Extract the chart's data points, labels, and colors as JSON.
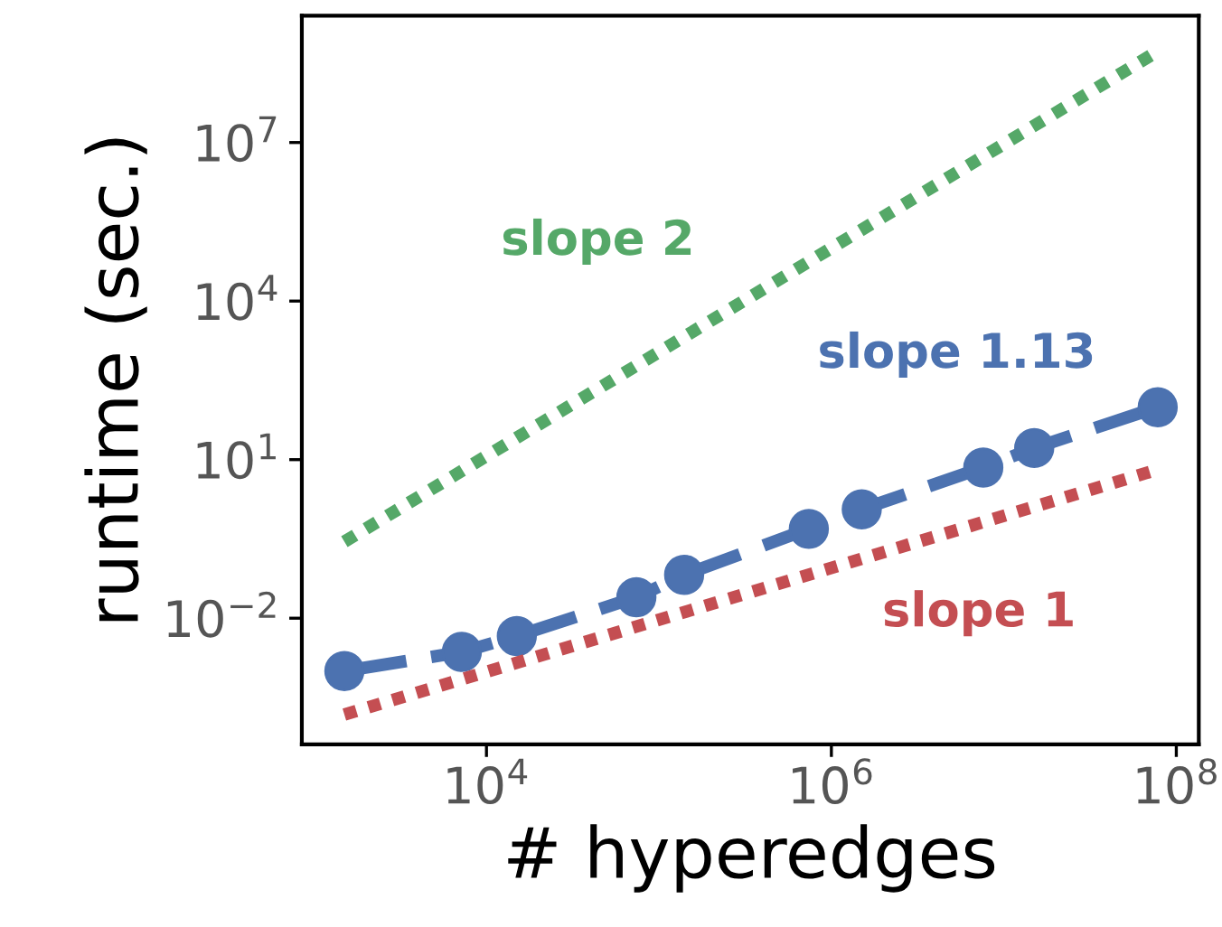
{
  "chart_data": {
    "type": "line",
    "xlabel": "# hyperedges",
    "ylabel": "runtime (sec.)",
    "log": "xy",
    "grid": false,
    "legend": false,
    "xlim": [
      850,
      135000000
    ],
    "ylim": [
      4.1e-05,
      2500000000
    ],
    "xticks": [
      {
        "value": 10000,
        "label": "10$^{4}$"
      },
      {
        "value": 1000000,
        "label": "10$^{6}$"
      },
      {
        "value": 100000000,
        "label": "10$^{8}$"
      }
    ],
    "yticks": [
      {
        "value": 0.01,
        "label": "10$^{−2}$"
      },
      {
        "value": 10,
        "label": "10$^{1}$"
      },
      {
        "value": 10000,
        "label": "10$^{4}$"
      },
      {
        "value": 10000000,
        "label": "10$^{7}$"
      }
    ],
    "series": [
      {
        "color": "#55a868",
        "line_style": "dotted",
        "marker": "none",
        "x": [
          1500,
          74000000
        ],
        "values": [
          0.28,
          480000000
        ]
      },
      {
        "color": "#4c72b0",
        "line_style": "dashed",
        "marker": "circle",
        "x": [
          1500,
          7200,
          15000,
          74000,
          140000,
          740000,
          1500000,
          7600000,
          15000000,
          78000000
        ],
        "values": [
          0.001,
          0.0023,
          0.0046,
          0.025,
          0.066,
          0.49,
          1.15,
          7.1,
          16.6,
          98
        ]
      },
      {
        "color": "#c44e52",
        "line_style": "dotted",
        "marker": "none",
        "x": [
          1500,
          78000000
        ],
        "values": [
          0.00015,
          6.5
        ]
      }
    ],
    "annotations": [
      "slope 2",
      "slope 1.13",
      "slope 1"
    ]
  }
}
